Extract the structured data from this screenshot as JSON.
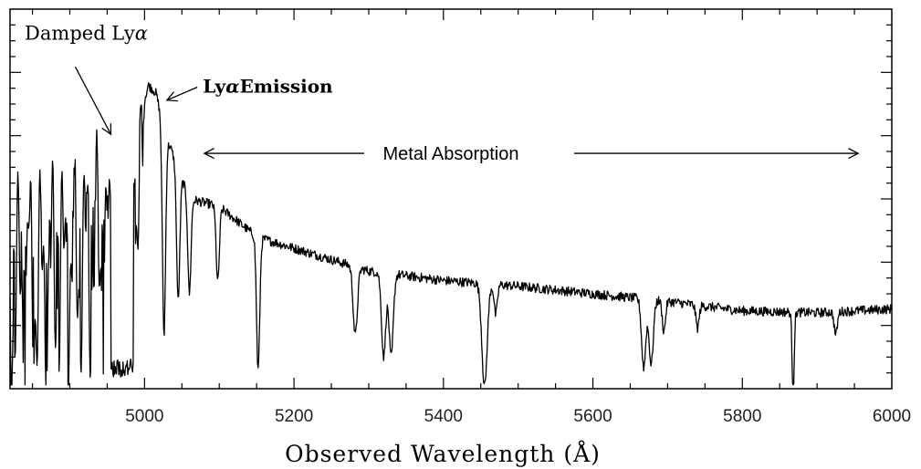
{
  "chart_data": {
    "type": "line",
    "title": "",
    "xlabel": "Observed Wavelength (Å)",
    "ylabel": "",
    "xlim": [
      4820,
      6000
    ],
    "ylim": [
      0,
      1
    ],
    "x_ticks": [
      5000,
      5200,
      5400,
      5600,
      5800,
      6000
    ],
    "x_tick_labels": [
      "5000",
      "5200",
      "5400",
      "5600",
      "5800",
      "6000"
    ],
    "y_tick_labels_visible": false,
    "grid": false,
    "legend": "none",
    "colors": {
      "line": "#000000",
      "axes": "#000000"
    },
    "series": [
      {
        "continuum_points": [
          {
            "x": 4820,
            "y": 0.45
          },
          {
            "x": 4880,
            "y": 0.5
          },
          {
            "x": 4940,
            "y": 0.56
          },
          {
            "x": 4960,
            "y": 0.52
          },
          {
            "x": 4980,
            "y": 0.6
          },
          {
            "x": 5005,
            "y": 0.8
          },
          {
            "x": 5015,
            "y": 0.78
          },
          {
            "x": 5030,
            "y": 0.66
          },
          {
            "x": 5060,
            "y": 0.5
          },
          {
            "x": 5100,
            "y": 0.48
          },
          {
            "x": 5150,
            "y": 0.4
          },
          {
            "x": 5200,
            "y": 0.37
          },
          {
            "x": 5300,
            "y": 0.31
          },
          {
            "x": 5400,
            "y": 0.285
          },
          {
            "x": 5500,
            "y": 0.27
          },
          {
            "x": 5600,
            "y": 0.25
          },
          {
            "x": 5700,
            "y": 0.23
          },
          {
            "x": 5800,
            "y": 0.205
          },
          {
            "x": 5900,
            "y": 0.2
          },
          {
            "x": 6000,
            "y": 0.21
          }
        ],
        "absorption_lines": [
          {
            "x": 5026,
            "depth": 0.55,
            "width": 3
          },
          {
            "x": 5045,
            "depth": 0.35,
            "width": 3
          },
          {
            "x": 5060,
            "depth": 0.25,
            "width": 3
          },
          {
            "x": 5098,
            "depth": 0.2,
            "width": 3
          },
          {
            "x": 5152,
            "depth": 0.35,
            "width": 3
          },
          {
            "x": 5282,
            "depth": 0.18,
            "width": 4
          },
          {
            "x": 5320,
            "depth": 0.22,
            "width": 4
          },
          {
            "x": 5330,
            "depth": 0.22,
            "width": 4
          },
          {
            "x": 5455,
            "depth": 0.27,
            "width": 5
          },
          {
            "x": 5470,
            "depth": 0.08,
            "width": 3
          },
          {
            "x": 5668,
            "depth": 0.18,
            "width": 4
          },
          {
            "x": 5678,
            "depth": 0.17,
            "width": 4
          },
          {
            "x": 5695,
            "depth": 0.08,
            "width": 3
          },
          {
            "x": 5740,
            "depth": 0.06,
            "width": 3
          },
          {
            "x": 5868,
            "depth": 0.21,
            "width": 2
          },
          {
            "x": 5925,
            "depth": 0.06,
            "width": 3
          }
        ],
        "lyman_forest_range": [
          4820,
          5000
        ]
      }
    ],
    "annotations": [
      {
        "id": "damped",
        "text": "Damped Ly",
        "symbol": "α",
        "x": 4922,
        "y": 0.92,
        "arrow_to": {
          "x": 4955,
          "y": 0.67
        }
      },
      {
        "id": "emission",
        "text": "Ly",
        "symbol": "α",
        "suffix": "Emission",
        "x": 5078,
        "y": 0.78,
        "arrow_to": {
          "x": 5030,
          "y": 0.76
        }
      },
      {
        "id": "metal",
        "text": "Metal Absorption",
        "x": 5410,
        "y": 0.62,
        "arrow_left_to": 5080,
        "arrow_right_to": 5955
      }
    ]
  }
}
